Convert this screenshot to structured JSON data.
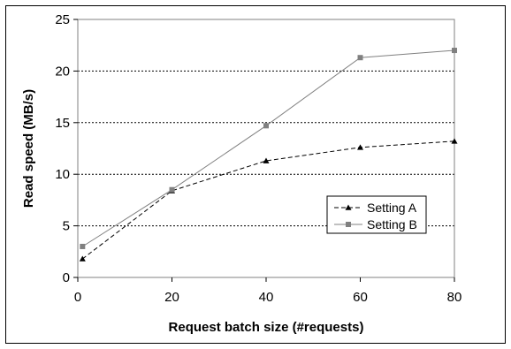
{
  "chart_data": {
    "type": "line",
    "xlabel": "Request batch size (#requests)",
    "ylabel": "Read speed (MB/s)",
    "xlim": [
      0,
      80
    ],
    "ylim": [
      0,
      25
    ],
    "x_ticks": [
      "0",
      "20",
      "40",
      "60",
      "80"
    ],
    "y_ticks": [
      "0",
      "5",
      "10",
      "15",
      "20",
      "25"
    ],
    "grid": "horizontal",
    "legend_position": "right",
    "series": [
      {
        "name": "Setting A",
        "line_style": "dashed",
        "marker": "triangle",
        "color": "#000000",
        "x": [
          1,
          20,
          40,
          60,
          80
        ],
        "values": [
          1.8,
          8.4,
          11.3,
          12.6,
          13.2
        ]
      },
      {
        "name": "Setting B",
        "line_style": "solid",
        "marker": "square",
        "color": "#808080",
        "x": [
          1,
          20,
          40,
          60,
          80
        ],
        "values": [
          3.0,
          8.5,
          14.7,
          21.3,
          22.0
        ]
      }
    ]
  }
}
